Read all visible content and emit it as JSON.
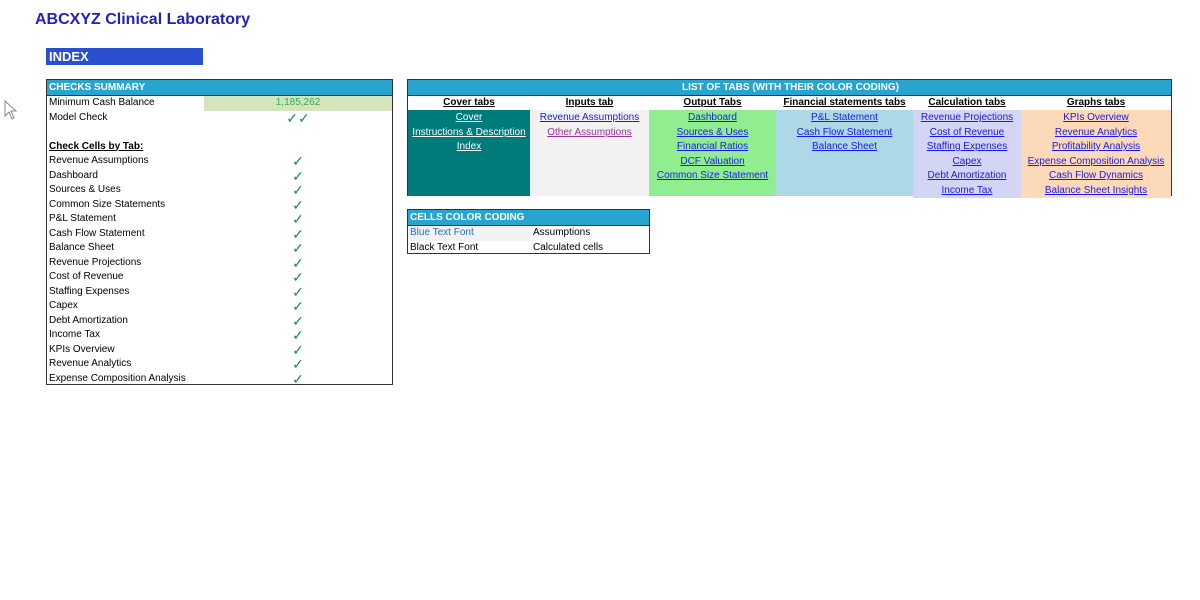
{
  "title": "ABCXYZ Clinical Laboratory",
  "index_label": "INDEX",
  "checks": {
    "header": "CHECKS SUMMARY",
    "min_cash_label": "Minimum Cash Balance",
    "min_cash_value": "1,185,262",
    "model_check_label": "Model Check",
    "model_check_value": "✓✓",
    "by_tab_label": "Check Cells by Tab:",
    "check_mark": "✓",
    "items": [
      "Revenue Assumptions",
      "Dashboard",
      "Sources & Uses",
      "Common Size Statements",
      "P&L Statement",
      "Cash Flow Statement",
      "Balance Sheet",
      "Revenue Projections",
      "Cost of Revenue",
      "Staffing Expenses",
      "Capex",
      "Debt Amortization",
      "Income Tax",
      "KPIs Overview",
      "Revenue Analytics",
      "Expense Composition Analysis"
    ]
  },
  "tabs": {
    "header": "LIST OF TABS (WITH THEIR COLOR CODING)",
    "columns": [
      {
        "title": "Cover tabs",
        "color": "#007b7b",
        "link_color": "#ffffff",
        "items": [
          "Cover",
          "Instructions & Description",
          "Index"
        ]
      },
      {
        "title": "Inputs tab",
        "color": "#f2f2f2",
        "link_color": "#1a1aee",
        "items": [
          "Revenue Assumptions",
          "Other Assumptions"
        ]
      },
      {
        "title": "Output Tabs",
        "color": "#90ee90",
        "link_color": "#1a1aee",
        "items": [
          "Dashboard",
          "Sources & Uses",
          "Financial Ratios",
          "DCF Valuation",
          "Common Size Statement"
        ]
      },
      {
        "title": "Financial statements tabs",
        "color": "#add8e6",
        "link_color": "#1a1aee",
        "items": [
          "P&L Statement",
          "Cash Flow Statement",
          "Balance Sheet"
        ]
      },
      {
        "title": "Calculation tabs",
        "color": "#d4d4f4",
        "link_color": "#1a1aee",
        "items": [
          "Revenue Projections",
          "Cost of Revenue",
          "Staffing Expenses",
          "Capex",
          "Debt Amortization",
          "Income Tax"
        ]
      },
      {
        "title": "Graphs tabs",
        "color": "#fcd9b8",
        "link_color": "#1a1aee",
        "items": [
          "KPIs Overview",
          "Revenue Analytics",
          "Profitability Analysis",
          "Expense Composition Analysis",
          "Cash Flow Dynamics",
          "Balance Sheet Insights"
        ]
      }
    ],
    "visited_link_color": "#993399"
  },
  "color_coding": {
    "header": "CELLS COLOR CODING",
    "rows": [
      {
        "font": "Blue Text Font",
        "meaning": "Assumptions",
        "color": "#1f6fbf"
      },
      {
        "font": "Black Text Font",
        "meaning": "Calculated cells",
        "color": "#000000"
      }
    ]
  }
}
